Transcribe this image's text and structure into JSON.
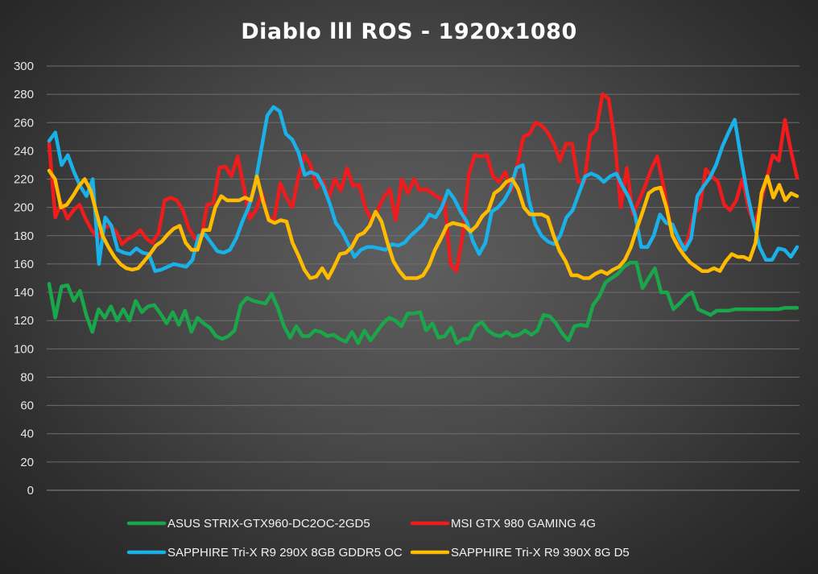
{
  "chart_data": {
    "type": "line",
    "title": "Diablo lll ROS - 1920x1080",
    "ylim": [
      0,
      300
    ],
    "yticks": [
      0,
      20,
      40,
      60,
      80,
      100,
      120,
      140,
      160,
      180,
      200,
      220,
      240,
      260,
      280,
      300
    ],
    "grid": true,
    "legend_position": "bottom",
    "series": [
      {
        "name": "ASUS STRIX-GTX960-DC2OC-2GD5",
        "color": "#1aa64b",
        "values": [
          146,
          122,
          144,
          145,
          134,
          141,
          124,
          112,
          128,
          122,
          130,
          120,
          128,
          120,
          134,
          126,
          130,
          131,
          125,
          118,
          126,
          117,
          127,
          112,
          122,
          118,
          115,
          109,
          107,
          109,
          113,
          131,
          136,
          134,
          133,
          132,
          139,
          129,
          116,
          108,
          116,
          109,
          109,
          113,
          112,
          109,
          110,
          107,
          105,
          112,
          104,
          113,
          106,
          112,
          118,
          122,
          120,
          116,
          125,
          125,
          126,
          113,
          118,
          108,
          109,
          115,
          104,
          107,
          107,
          116,
          119,
          113,
          110,
          109,
          112,
          109,
          110,
          113,
          110,
          113,
          124,
          123,
          118,
          111,
          106,
          116,
          117,
          116,
          131,
          137,
          147,
          150,
          153,
          158,
          161,
          161,
          143,
          150,
          157,
          140,
          140,
          128,
          132,
          137,
          140,
          128,
          126,
          124,
          127,
          127,
          127,
          128,
          128,
          128,
          128,
          128,
          128,
          128,
          128,
          129,
          129,
          129
        ]
      },
      {
        "name": "MSI GTX 980 GAMING 4G",
        "color": "#ee1c1c",
        "values": [
          245,
          193,
          203,
          192,
          198,
          202,
          192,
          184,
          178,
          186,
          187,
          183,
          174,
          178,
          180,
          184,
          178,
          175,
          182,
          205,
          207,
          205,
          198,
          185,
          178,
          178,
          202,
          203,
          228,
          229,
          222,
          236,
          215,
          192,
          198,
          210,
          193,
          191,
          217,
          207,
          200,
          222,
          237,
          230,
          214,
          219,
          207,
          220,
          212,
          228,
          215,
          216,
          200,
          191,
          198,
          207,
          213,
          191,
          220,
          210,
          220,
          212,
          213,
          210,
          207,
          205,
          160,
          155,
          180,
          223,
          237,
          236,
          237,
          222,
          218,
          225,
          212,
          230,
          250,
          252,
          260,
          258,
          253,
          245,
          233,
          245,
          245,
          218,
          218,
          251,
          255,
          280,
          277,
          248,
          200,
          228,
          195,
          205,
          215,
          227,
          236,
          216,
          190,
          183,
          172,
          176,
          195,
          200,
          227,
          222,
          218,
          202,
          198,
          205,
          220,
          200,
          187,
          203,
          220,
          237,
          233,
          262,
          240,
          221
        ]
      },
      {
        "name": "SAPPHIRE Tri-X R9 290X 8GB GDDR5 OC",
        "color": "#1ab0e8",
        "values": [
          247,
          253,
          230,
          237,
          225,
          215,
          208,
          220,
          160,
          193,
          187,
          170,
          168,
          167,
          171,
          168,
          167,
          155,
          156,
          158,
          160,
          159,
          158,
          163,
          180,
          181,
          175,
          169,
          168,
          170,
          178,
          190,
          200,
          215,
          240,
          265,
          271,
          268,
          252,
          248,
          239,
          223,
          225,
          223,
          215,
          203,
          189,
          183,
          174,
          165,
          170,
          172,
          172,
          171,
          170,
          174,
          173,
          175,
          180,
          184,
          188,
          195,
          193,
          200,
          212,
          206,
          197,
          190,
          176,
          167,
          175,
          197,
          200,
          205,
          213,
          228,
          230,
          205,
          188,
          180,
          176,
          174,
          180,
          193,
          198,
          210,
          222,
          224,
          222,
          218,
          222,
          224,
          215,
          207,
          195,
          172,
          172,
          180,
          195,
          189,
          188,
          178,
          170,
          178,
          208,
          215,
          221,
          230,
          243,
          253,
          262,
          235,
          210,
          190,
          172,
          163,
          163,
          171,
          170,
          165,
          172
        ]
      },
      {
        "name": "SAPPHIRE Tri-X R9 390X 8G D5",
        "color": "#ffbb00",
        "values": [
          226,
          220,
          200,
          202,
          208,
          215,
          220,
          212,
          196,
          180,
          172,
          165,
          160,
          157,
          156,
          157,
          162,
          167,
          173,
          176,
          181,
          185,
          187,
          175,
          170,
          170,
          184,
          184,
          200,
          208,
          205,
          205,
          205,
          207,
          205,
          222,
          205,
          191,
          189,
          191,
          190,
          175,
          166,
          156,
          150,
          151,
          157,
          150,
          158,
          167,
          168,
          172,
          180,
          182,
          187,
          197,
          190,
          175,
          162,
          155,
          150,
          150,
          150,
          152,
          159,
          170,
          178,
          187,
          189,
          188,
          187,
          183,
          187,
          194,
          198,
          210,
          213,
          218,
          220,
          213,
          200,
          195,
          195,
          195,
          193,
          180,
          169,
          162,
          152,
          152,
          150,
          150,
          153,
          155,
          153,
          156,
          158,
          163,
          172,
          185,
          197,
          210,
          213,
          214,
          200,
          180,
          172,
          166,
          161,
          158,
          155,
          155,
          157,
          155,
          162,
          167,
          165,
          165,
          163,
          175,
          210,
          222,
          207,
          216,
          205,
          210,
          208
        ]
      }
    ]
  }
}
